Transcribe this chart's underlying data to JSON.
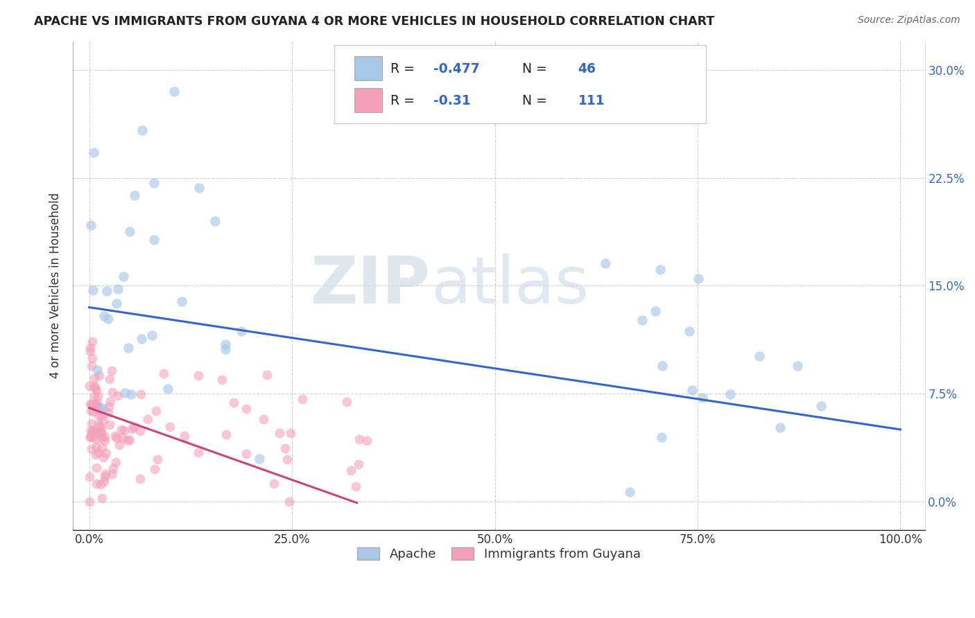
{
  "title": "APACHE VS IMMIGRANTS FROM GUYANA 4 OR MORE VEHICLES IN HOUSEHOLD CORRELATION CHART",
  "source": "Source: ZipAtlas.com",
  "ylabel": "4 or more Vehicles in Household",
  "apache_R": -0.477,
  "apache_N": 46,
  "guyana_R": -0.31,
  "guyana_N": 111,
  "blue_scatter_color": "#a8c8e8",
  "pink_scatter_color": "#f4a0b8",
  "blue_line_color": "#3366cc",
  "pink_line_color": "#cc4477",
  "legend_blue_label": "Apache",
  "legend_pink_label": "Immigrants from Guyana",
  "watermark_ZIP": "ZIP",
  "watermark_atlas": "atlas",
  "bg_color": "#ffffff",
  "grid_color": "#cccccc",
  "title_color": "#222222",
  "source_color": "#666666",
  "axis_text_color": "#3366cc",
  "legend_text_color": "#333333"
}
